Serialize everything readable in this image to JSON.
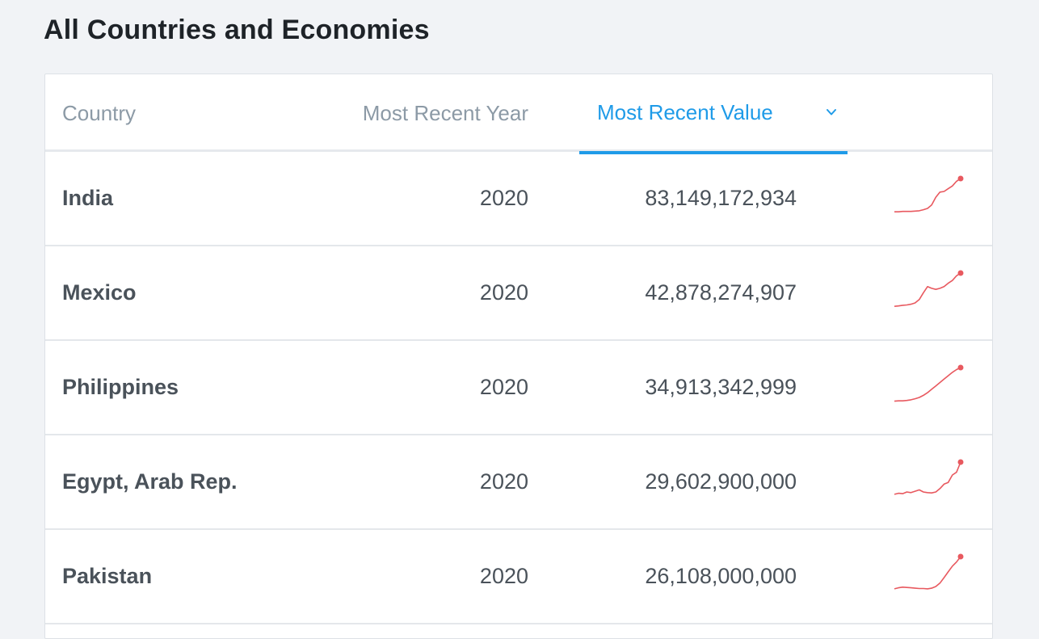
{
  "page": {
    "title": "All Countries and Economies"
  },
  "table": {
    "columns": {
      "country": "Country",
      "year": "Most Recent Year",
      "value": "Most Recent Value"
    },
    "sort_icon": "chevron-down-icon",
    "accent_color": "#1f9be8",
    "spark_color": "#e8595f",
    "rows": [
      {
        "country": "India",
        "year": "2020",
        "value": "83,149,172,934",
        "trend": [
          0.02,
          0.02,
          0.03,
          0.03,
          0.03,
          0.04,
          0.05,
          0.08,
          0.12,
          0.22,
          0.45,
          0.6,
          0.62,
          0.7,
          0.78,
          0.92,
          1.0
        ]
      },
      {
        "country": "Mexico",
        "year": "2020",
        "value": "42,878,274,907",
        "trend": [
          0.02,
          0.03,
          0.05,
          0.06,
          0.08,
          0.12,
          0.22,
          0.42,
          0.6,
          0.55,
          0.52,
          0.55,
          0.6,
          0.7,
          0.78,
          0.92,
          1.0
        ]
      },
      {
        "country": "Philippines",
        "year": "2020",
        "value": "34,913,342,999",
        "trend": [
          0.01,
          0.02,
          0.02,
          0.03,
          0.05,
          0.08,
          0.12,
          0.18,
          0.26,
          0.36,
          0.46,
          0.56,
          0.66,
          0.76,
          0.86,
          0.94,
          1.0
        ]
      },
      {
        "country": "Egypt, Arab Rep.",
        "year": "2020",
        "value": "29,602,900,000",
        "trend": [
          0.05,
          0.08,
          0.07,
          0.12,
          0.1,
          0.14,
          0.18,
          0.12,
          0.1,
          0.09,
          0.12,
          0.22,
          0.35,
          0.4,
          0.62,
          0.7,
          1.0
        ]
      },
      {
        "country": "Pakistan",
        "year": "2020",
        "value": "26,108,000,000",
        "trend": [
          0.05,
          0.08,
          0.1,
          0.09,
          0.08,
          0.07,
          0.06,
          0.06,
          0.05,
          0.07,
          0.12,
          0.22,
          0.38,
          0.55,
          0.72,
          0.84,
          1.0
        ]
      }
    ]
  }
}
